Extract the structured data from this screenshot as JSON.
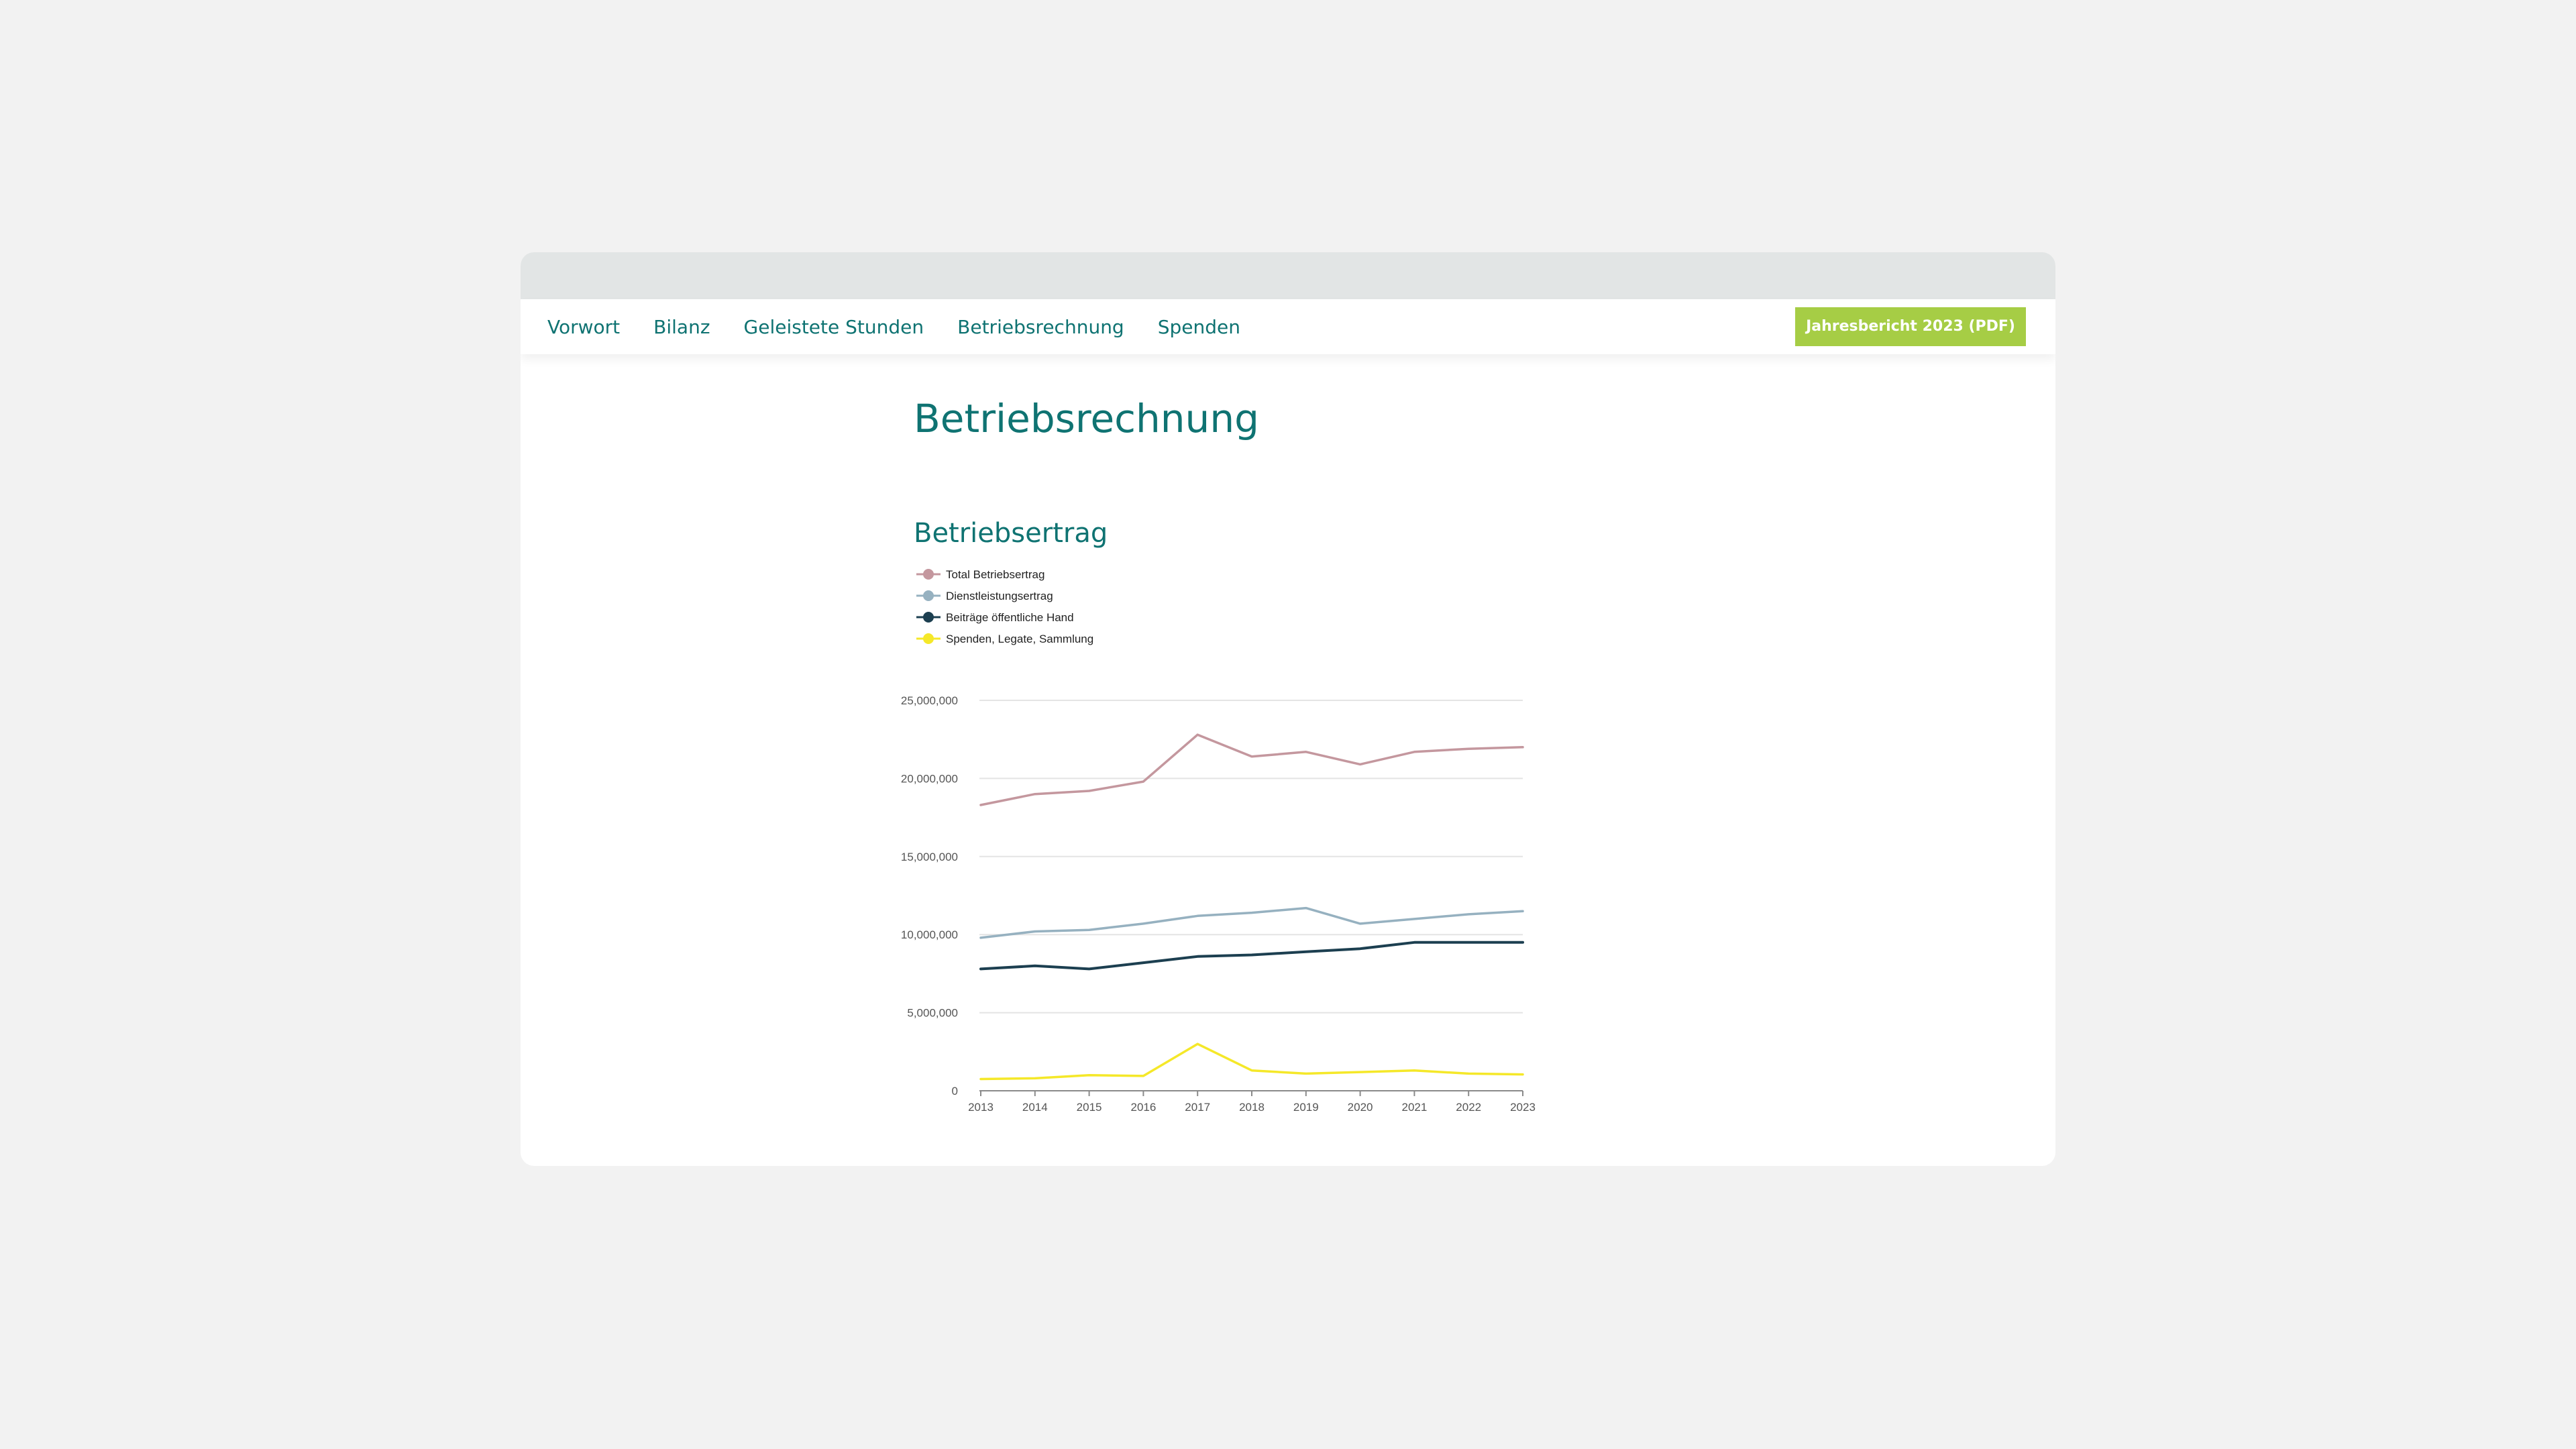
{
  "nav": {
    "items": [
      {
        "label": "Vorwort"
      },
      {
        "label": "Bilanz"
      },
      {
        "label": "Geleistete Stunden"
      },
      {
        "label": "Betriebsrechnung"
      },
      {
        "label": "Spenden"
      }
    ],
    "pdf_button": "Jahresbericht 2023 (PDF)"
  },
  "page": {
    "title": "Betriebsrechnung"
  },
  "colors": {
    "accent": "#0f7372",
    "button": "#a6cd45",
    "window_bar": "#e2e5e5",
    "background": "#f2f2f2"
  },
  "chart_data": {
    "type": "line",
    "title": "Betriebsertrag",
    "x": [
      "2013",
      "2014",
      "2015",
      "2016",
      "2017",
      "2018",
      "2019",
      "2020",
      "2021",
      "2022",
      "2023"
    ],
    "yticks": [
      "0",
      "5,000,000",
      "10,000,000",
      "15,000,000",
      "20,000,000",
      "25,000,000"
    ],
    "ylim": [
      0,
      25000000
    ],
    "grid": true,
    "legend": "top-left",
    "series": [
      {
        "name": "Total Betriebsertrag",
        "color": "#c4979e",
        "values": [
          18300000,
          19000000,
          19200000,
          19800000,
          22800000,
          21400000,
          21700000,
          20900000,
          21700000,
          21900000,
          22000000
        ]
      },
      {
        "name": "Dienstleistungsertrag",
        "color": "#96b1c0",
        "values": [
          9800000,
          10200000,
          10300000,
          10700000,
          11200000,
          11400000,
          11700000,
          10700000,
          11000000,
          11300000,
          11500000
        ]
      },
      {
        "name": "Beiträge öffentliche Hand",
        "color": "#1c3f50",
        "values": [
          7800000,
          8000000,
          7800000,
          8200000,
          8600000,
          8700000,
          8900000,
          9100000,
          9500000,
          9500000,
          9500000
        ]
      },
      {
        "name": "Spenden, Legate, Sammlung",
        "color": "#f5e829",
        "values": [
          750000,
          800000,
          1000000,
          950000,
          3000000,
          1300000,
          1100000,
          1200000,
          1300000,
          1100000,
          1050000
        ]
      }
    ]
  }
}
